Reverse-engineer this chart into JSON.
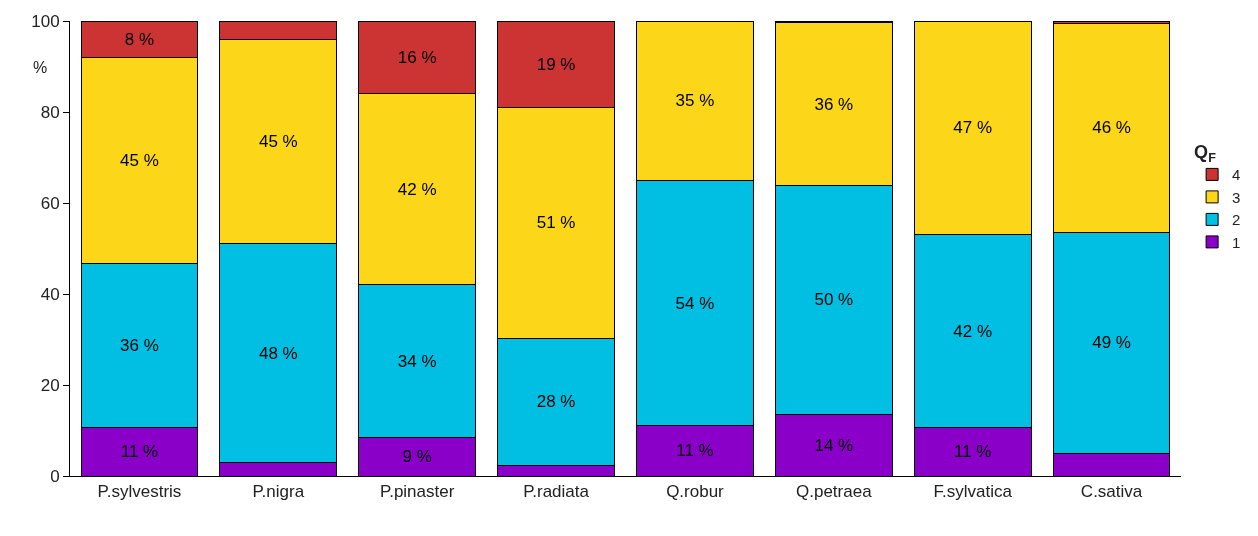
{
  "chart_data": {
    "type": "bar",
    "stacked": true,
    "ylabel": "%",
    "legend_title": "Q$_{F}$",
    "legend": "right",
    "categories": [
      "P.sylvestris",
      "P.nigra",
      "P.pinaster",
      "P.radiata",
      "Q.robur",
      "Q.petraea",
      "F.sylvatica",
      "C.sativa"
    ],
    "ylim": [
      0,
      100
    ],
    "yticks": [
      0,
      20,
      40,
      60,
      80,
      100
    ],
    "series": [
      {
        "name": "1",
        "color": "#8a00c8",
        "values": [
          10.6,
          3,
          8.5,
          2.4,
          11,
          13.6,
          10.6,
          5
        ],
        "value_labels": [
          "11 %",
          null,
          "9 %",
          null,
          "11 %",
          "14 %",
          "11 %",
          null
        ]
      },
      {
        "name": "2",
        "color": "#00bfe3",
        "values": [
          36,
          48,
          33.5,
          27.9,
          54,
          50.2,
          42.4,
          48.6
        ],
        "value_labels": [
          "36 %",
          "48 %",
          "34 %",
          "28 %",
          "54 %",
          "50 %",
          "42 %",
          "49 %"
        ]
      },
      {
        "name": "3",
        "color": "#fcd619",
        "values": [
          45.4,
          45,
          42,
          50.7,
          35,
          35.8,
          47,
          45.9
        ],
        "value_labels": [
          "45 %",
          "45 %",
          "42 %",
          "51 %",
          "35 %",
          "36 %",
          "47 %",
          "46 %"
        ]
      },
      {
        "name": "4",
        "color": "#cc3333",
        "values": [
          8,
          4,
          16,
          19,
          null,
          0.4,
          null,
          0.5
        ],
        "value_labels": [
          "8 %",
          null,
          "16 %",
          "19 %",
          null,
          null,
          null,
          null
        ]
      }
    ]
  }
}
